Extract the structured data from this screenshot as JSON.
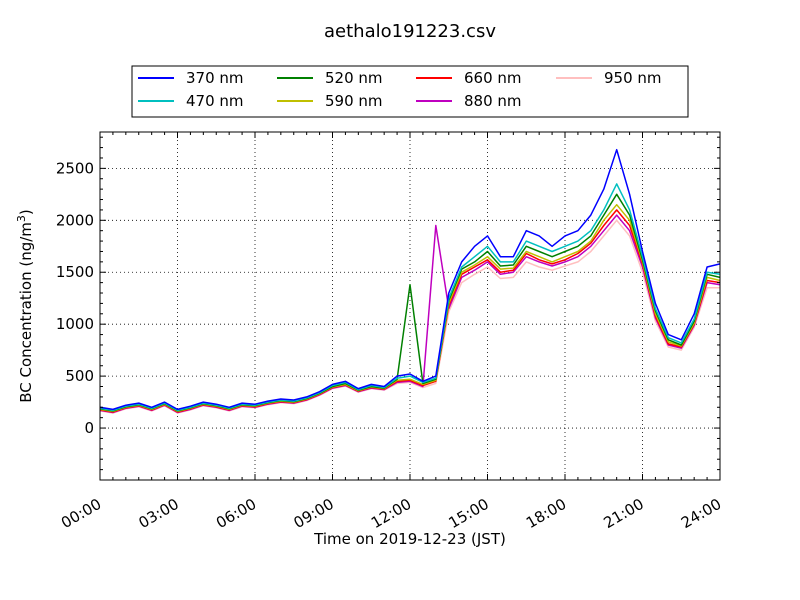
{
  "chart_data": {
    "type": "line",
    "title": "aethalo191223.csv",
    "xlabel": "Time on 2019-12-23 (JST)",
    "ylabel": "BC Concentration (ng/m³)",
    "ylabel_main": "BC Concentration (ng/m",
    "ylabel_sup": "3",
    "ylabel_close": ")",
    "xlim": [
      "00:00",
      "24:00"
    ],
    "ylim": [
      -500,
      2850
    ],
    "x_ticks": [
      "00:00",
      "03:00",
      "06:00",
      "09:00",
      "12:00",
      "15:00",
      "18:00",
      "21:00",
      "24:00"
    ],
    "y_ticks": [
      0,
      500,
      1000,
      1500,
      2000,
      2500
    ],
    "grid": true,
    "grid_style": "dotted",
    "legend_position": "top-center, above plot",
    "x": [
      "00:00",
      "00:30",
      "01:00",
      "01:30",
      "02:00",
      "02:30",
      "03:00",
      "03:30",
      "04:00",
      "04:30",
      "05:00",
      "05:30",
      "06:00",
      "06:30",
      "07:00",
      "07:30",
      "08:00",
      "08:30",
      "09:00",
      "09:30",
      "10:00",
      "10:30",
      "11:00",
      "11:30",
      "12:00",
      "12:30",
      "13:00",
      "13:30",
      "14:00",
      "14:30",
      "15:00",
      "15:30",
      "16:00",
      "16:30",
      "17:00",
      "17:30",
      "18:00",
      "18:30",
      "19:00",
      "19:30",
      "20:00",
      "20:30",
      "21:00",
      "21:30",
      "22:00",
      "22:30",
      "23:00",
      "23:30",
      "24:00"
    ],
    "series": [
      {
        "name": "370 nm",
        "color": "#0000ff",
        "values": [
          200,
          180,
          220,
          240,
          200,
          250,
          180,
          210,
          250,
          230,
          200,
          240,
          230,
          260,
          280,
          270,
          300,
          350,
          420,
          450,
          380,
          420,
          400,
          500,
          520,
          450,
          500,
          1300,
          1600,
          1750,
          1850,
          1650,
          1650,
          1900,
          1850,
          1750,
          1850,
          1900,
          2050,
          2300,
          2680,
          2250,
          1700,
          1200,
          900,
          850,
          1100,
          1550,
          1580
        ]
      },
      {
        "name": "470 nm",
        "color": "#00bfbf",
        "values": [
          190,
          170,
          210,
          230,
          190,
          240,
          170,
          200,
          240,
          220,
          190,
          230,
          220,
          250,
          270,
          260,
          290,
          340,
          410,
          440,
          370,
          410,
          390,
          480,
          500,
          440,
          480,
          1250,
          1550,
          1650,
          1750,
          1600,
          1600,
          1800,
          1750,
          1700,
          1750,
          1800,
          1900,
          2100,
          2350,
          2100,
          1650,
          1150,
          870,
          820,
          1050,
          1500,
          1480
        ]
      },
      {
        "name": "520 nm",
        "color": "#008000",
        "values": [
          185,
          165,
          205,
          225,
          185,
          235,
          165,
          195,
          235,
          215,
          185,
          225,
          215,
          245,
          265,
          255,
          285,
          335,
          400,
          430,
          365,
          400,
          385,
          470,
          1380,
          430,
          470,
          1230,
          1530,
          1600,
          1700,
          1560,
          1570,
          1750,
          1700,
          1650,
          1700,
          1750,
          1850,
          2050,
          2250,
          2050,
          1620,
          1130,
          850,
          800,
          1030,
          1480,
          1450
        ]
      },
      {
        "name": "590 nm",
        "color": "#bfbf00",
        "values": [
          180,
          160,
          200,
          220,
          180,
          230,
          160,
          190,
          230,
          210,
          180,
          220,
          210,
          240,
          260,
          250,
          280,
          330,
          395,
          420,
          360,
          395,
          380,
          460,
          470,
          420,
          460,
          1200,
          1500,
          1570,
          1650,
          1530,
          1540,
          1700,
          1650,
          1600,
          1650,
          1700,
          1800,
          2000,
          2150,
          2000,
          1600,
          1100,
          830,
          790,
          1010,
          1450,
          1420
        ]
      },
      {
        "name": "660 nm",
        "color": "#ff0000",
        "values": [
          175,
          155,
          195,
          215,
          175,
          225,
          155,
          185,
          225,
          205,
          175,
          215,
          205,
          235,
          255,
          245,
          275,
          325,
          390,
          415,
          355,
          390,
          375,
          450,
          460,
          410,
          450,
          1180,
          1480,
          1550,
          1620,
          1500,
          1520,
          1680,
          1620,
          1580,
          1620,
          1680,
          1780,
          1950,
          2100,
          1950,
          1580,
          1080,
          810,
          780,
          1000,
          1420,
          1400
        ]
      },
      {
        "name": "880 nm",
        "color": "#bf00bf",
        "values": [
          170,
          150,
          190,
          210,
          170,
          220,
          150,
          180,
          220,
          200,
          170,
          210,
          200,
          230,
          250,
          240,
          270,
          320,
          385,
          410,
          350,
          385,
          370,
          440,
          450,
          400,
          1950,
          1150,
          1450,
          1520,
          1600,
          1480,
          1500,
          1650,
          1600,
          1560,
          1600,
          1650,
          1750,
          1900,
          2050,
          1900,
          1550,
          1060,
          800,
          770,
          990,
          1400,
          1380
        ]
      },
      {
        "name": "950 nm",
        "color": "#ffbfbf",
        "values": [
          165,
          145,
          185,
          205,
          165,
          215,
          145,
          175,
          215,
          195,
          165,
          205,
          195,
          225,
          245,
          235,
          265,
          315,
          380,
          405,
          345,
          380,
          365,
          430,
          440,
          390,
          430,
          1120,
          1400,
          1480,
          1550,
          1440,
          1450,
          1600,
          1550,
          1520,
          1560,
          1600,
          1700,
          1850,
          2000,
          1850,
          1500,
          1030,
          780,
          750,
          970,
          1350,
          1350
        ]
      }
    ]
  }
}
